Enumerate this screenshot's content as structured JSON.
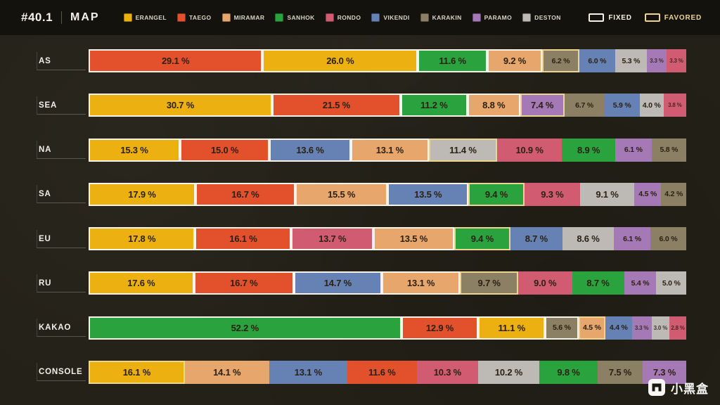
{
  "header": {
    "version": "#40.1",
    "title": "MAP",
    "legend": [
      {
        "map": "ERANGEL",
        "color": "#ecb011"
      },
      {
        "map": "TAEGO",
        "color": "#e2512c"
      },
      {
        "map": "MIRAMAR",
        "color": "#e7a76c"
      },
      {
        "map": "SANHOK",
        "color": "#2aa23e"
      },
      {
        "map": "RONDO",
        "color": "#d15c72"
      },
      {
        "map": "VIKENDI",
        "color": "#6681b4"
      },
      {
        "map": "KARAKIN",
        "color": "#8b8063"
      },
      {
        "map": "PARAMO",
        "color": "#a579b5"
      },
      {
        "map": "DESTON",
        "color": "#bdbab5"
      }
    ],
    "markers": {
      "fixed": {
        "label": "FIXED",
        "border_color": "#f7f3e8"
      },
      "favored": {
        "label": "FAVORED",
        "border_color": "#ecd493"
      }
    }
  },
  "chart_data": {
    "type": "bar",
    "variant": "stacked-horizontal",
    "unit": "%",
    "x_range": [
      0,
      100
    ],
    "legend_position": "top",
    "rows": [
      {
        "region": "AS",
        "segments": [
          {
            "map": "TAEGO",
            "value": 29.1,
            "border": "fixed"
          },
          {
            "map": "ERANGEL",
            "value": 26.0,
            "border": "fixed"
          },
          {
            "map": "SANHOK",
            "value": 11.6,
            "border": "fixed"
          },
          {
            "map": "MIRAMAR",
            "value": 9.2,
            "border": "fixed"
          },
          {
            "map": "KARAKIN",
            "value": 6.2,
            "border": "favored"
          },
          {
            "map": "VIKENDI",
            "value": 6.0,
            "border": "none"
          },
          {
            "map": "DESTON",
            "value": 5.3,
            "border": "none"
          },
          {
            "map": "PARAMO",
            "value": 3.3,
            "border": "none"
          },
          {
            "map": "RONDO",
            "value": 3.3,
            "border": "none"
          }
        ]
      },
      {
        "region": "SEA",
        "segments": [
          {
            "map": "ERANGEL",
            "value": 30.7,
            "border": "fixed"
          },
          {
            "map": "TAEGO",
            "value": 21.5,
            "border": "fixed"
          },
          {
            "map": "SANHOK",
            "value": 11.2,
            "border": "fixed"
          },
          {
            "map": "MIRAMAR",
            "value": 8.8,
            "border": "fixed"
          },
          {
            "map": "PARAMO",
            "value": 7.4,
            "border": "favored"
          },
          {
            "map": "KARAKIN",
            "value": 6.7,
            "border": "none"
          },
          {
            "map": "VIKENDI",
            "value": 5.9,
            "border": "none"
          },
          {
            "map": "DESTON",
            "value": 4.0,
            "border": "none"
          },
          {
            "map": "RONDO",
            "value": 3.8,
            "border": "none"
          }
        ]
      },
      {
        "region": "NA",
        "segments": [
          {
            "map": "ERANGEL",
            "value": 15.3,
            "border": "fixed"
          },
          {
            "map": "TAEGO",
            "value": 15.0,
            "border": "fixed"
          },
          {
            "map": "VIKENDI",
            "value": 13.6,
            "border": "fixed"
          },
          {
            "map": "MIRAMAR",
            "value": 13.1,
            "border": "fixed"
          },
          {
            "map": "DESTON",
            "value": 11.4,
            "border": "favored"
          },
          {
            "map": "RONDO",
            "value": 10.9,
            "border": "none"
          },
          {
            "map": "SANHOK",
            "value": 8.9,
            "border": "none"
          },
          {
            "map": "PARAMO",
            "value": 6.1,
            "border": "none"
          },
          {
            "map": "KARAKIN",
            "value": 5.8,
            "border": "none"
          }
        ]
      },
      {
        "region": "SA",
        "segments": [
          {
            "map": "ERANGEL",
            "value": 17.9,
            "border": "fixed"
          },
          {
            "map": "TAEGO",
            "value": 16.7,
            "border": "fixed"
          },
          {
            "map": "MIRAMAR",
            "value": 15.5,
            "border": "fixed"
          },
          {
            "map": "VIKENDI",
            "value": 13.5,
            "border": "fixed"
          },
          {
            "map": "SANHOK",
            "value": 9.4,
            "border": "favored"
          },
          {
            "map": "RONDO",
            "value": 9.3,
            "border": "none"
          },
          {
            "map": "DESTON",
            "value": 9.1,
            "border": "none"
          },
          {
            "map": "PARAMO",
            "value": 4.5,
            "border": "none"
          },
          {
            "map": "KARAKIN",
            "value": 4.2,
            "border": "none"
          }
        ]
      },
      {
        "region": "EU",
        "segments": [
          {
            "map": "ERANGEL",
            "value": 17.8,
            "border": "fixed"
          },
          {
            "map": "TAEGO",
            "value": 16.1,
            "border": "fixed"
          },
          {
            "map": "RONDO",
            "value": 13.7,
            "border": "fixed"
          },
          {
            "map": "MIRAMAR",
            "value": 13.5,
            "border": "fixed"
          },
          {
            "map": "SANHOK",
            "value": 9.4,
            "border": "favored"
          },
          {
            "map": "VIKENDI",
            "value": 8.7,
            "border": "none"
          },
          {
            "map": "DESTON",
            "value": 8.6,
            "border": "none"
          },
          {
            "map": "PARAMO",
            "value": 6.1,
            "border": "none"
          },
          {
            "map": "KARAKIN",
            "value": 6.0,
            "border": "none"
          }
        ]
      },
      {
        "region": "RU",
        "segments": [
          {
            "map": "ERANGEL",
            "value": 17.6,
            "border": "fixed"
          },
          {
            "map": "TAEGO",
            "value": 16.7,
            "border": "fixed"
          },
          {
            "map": "VIKENDI",
            "value": 14.7,
            "border": "fixed"
          },
          {
            "map": "MIRAMAR",
            "value": 13.1,
            "border": "fixed"
          },
          {
            "map": "KARAKIN",
            "value": 9.7,
            "border": "favored"
          },
          {
            "map": "RONDO",
            "value": 9.0,
            "border": "none"
          },
          {
            "map": "SANHOK",
            "value": 8.7,
            "border": "none"
          },
          {
            "map": "PARAMO",
            "value": 5.4,
            "border": "none"
          },
          {
            "map": "DESTON",
            "value": 5.0,
            "border": "none"
          }
        ]
      },
      {
        "region": "KAKAO",
        "segments": [
          {
            "map": "SANHOK",
            "value": 52.2,
            "border": "fixed"
          },
          {
            "map": "TAEGO",
            "value": 12.9,
            "border": "fixed"
          },
          {
            "map": "ERANGEL",
            "value": 11.1,
            "border": "fixed"
          },
          {
            "map": "KARAKIN",
            "value": 5.6,
            "border": "fixed"
          },
          {
            "map": "MIRAMAR",
            "value": 4.5,
            "border": "favored"
          },
          {
            "map": "VIKENDI",
            "value": 4.4,
            "border": "none"
          },
          {
            "map": "PARAMO",
            "value": 3.3,
            "border": "none"
          },
          {
            "map": "DESTON",
            "value": 3.0,
            "border": "none"
          },
          {
            "map": "RONDO",
            "value": 2.8,
            "border": "none"
          }
        ]
      },
      {
        "region": "CONSOLE",
        "segments": [
          {
            "map": "ERANGEL",
            "value": 16.1,
            "border": "favored"
          },
          {
            "map": "MIRAMAR",
            "value": 14.1,
            "border": "none"
          },
          {
            "map": "VIKENDI",
            "value": 13.1,
            "border": "none"
          },
          {
            "map": "TAEGO",
            "value": 11.6,
            "border": "none"
          },
          {
            "map": "RONDO",
            "value": 10.3,
            "border": "none"
          },
          {
            "map": "DESTON",
            "value": 10.2,
            "border": "none"
          },
          {
            "map": "SANHOK",
            "value": 9.8,
            "border": "none"
          },
          {
            "map": "KARAKIN",
            "value": 7.5,
            "border": "none"
          },
          {
            "map": "PARAMO",
            "value": 7.3,
            "border": "none"
          }
        ]
      }
    ]
  },
  "watermark": {
    "text": "小黑盒"
  }
}
